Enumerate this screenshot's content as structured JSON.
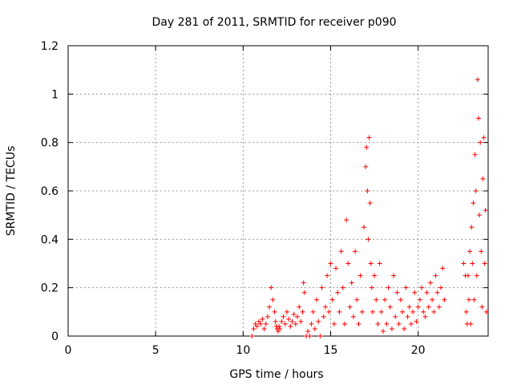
{
  "chart_data": {
    "type": "scatter",
    "title": "Day 281 of 2011, SRMTID for receiver p090",
    "xlabel": "GPS time / hours",
    "ylabel": "SRMTID / TECUs",
    "xlim": [
      0,
      24
    ],
    "ylim": [
      0,
      1.2
    ],
    "x_ticks": [
      0,
      5,
      10,
      15,
      20
    ],
    "x_tick_labels": [
      "0",
      "5",
      "10",
      "15",
      "20"
    ],
    "y_ticks": [
      0,
      0.2,
      0.4,
      0.6,
      0.8,
      1,
      1.2
    ],
    "y_tick_labels": [
      "0",
      "0.2",
      "0.4",
      "0.6",
      "0.8",
      "1",
      "1.2"
    ],
    "grid": true,
    "marker": "+",
    "color": "#ff0000",
    "series": [
      {
        "name": "SRMTID",
        "x": [
          10.5,
          10.6,
          10.7,
          10.8,
          10.9,
          11.0,
          11.1,
          11.2,
          11.3,
          11.4,
          11.5,
          11.6,
          11.7,
          11.8,
          11.85,
          11.9,
          11.95,
          12.0,
          12.05,
          12.1,
          12.2,
          12.3,
          12.4,
          12.5,
          12.6,
          12.7,
          12.8,
          12.9,
          13.0,
          13.1,
          13.2,
          13.3,
          13.4,
          13.45,
          13.5,
          13.6,
          13.7,
          13.8,
          13.9,
          14.0,
          14.1,
          14.2,
          14.3,
          14.4,
          14.5,
          14.6,
          14.7,
          14.8,
          14.9,
          15.0,
          15.1,
          15.2,
          15.3,
          15.4,
          15.5,
          15.6,
          15.7,
          15.8,
          15.9,
          16.0,
          16.1,
          16.2,
          16.3,
          16.4,
          16.5,
          16.6,
          16.7,
          16.8,
          16.9,
          17.0,
          17.05,
          17.1,
          17.15,
          17.2,
          17.25,
          17.3,
          17.35,
          17.4,
          17.5,
          17.6,
          17.7,
          17.8,
          17.9,
          18.0,
          18.1,
          18.2,
          18.3,
          18.4,
          18.5,
          18.6,
          18.7,
          18.8,
          18.9,
          19.0,
          19.1,
          19.2,
          19.3,
          19.4,
          19.5,
          19.6,
          19.7,
          19.8,
          19.9,
          20.0,
          20.1,
          20.2,
          20.3,
          20.4,
          20.5,
          20.6,
          20.7,
          20.8,
          20.9,
          21.0,
          21.1,
          21.2,
          21.3,
          21.4,
          21.5,
          22.6,
          22.7,
          22.75,
          22.8,
          22.85,
          22.9,
          22.95,
          23.0,
          23.05,
          23.1,
          23.15,
          23.2,
          23.25,
          23.3,
          23.35,
          23.4,
          23.45,
          23.5,
          23.55,
          23.6,
          23.65,
          23.7,
          23.75,
          23.8,
          23.85,
          23.9
        ],
        "y": [
          0.0,
          0.03,
          0.05,
          0.04,
          0.06,
          0.05,
          0.07,
          0.03,
          0.05,
          0.08,
          0.12,
          0.2,
          0.15,
          0.1,
          0.06,
          0.04,
          0.03,
          0.02,
          0.04,
          0.03,
          0.06,
          0.08,
          0.05,
          0.1,
          0.07,
          0.04,
          0.06,
          0.09,
          0.05,
          0.08,
          0.12,
          0.06,
          0.1,
          0.22,
          0.18,
          0.0,
          0.02,
          0.0,
          0.05,
          0.1,
          0.03,
          0.15,
          0.06,
          0.0,
          0.2,
          0.08,
          0.12,
          0.25,
          0.1,
          0.3,
          0.15,
          0.05,
          0.28,
          0.18,
          0.1,
          0.35,
          0.2,
          0.05,
          0.48,
          0.3,
          0.12,
          0.22,
          0.08,
          0.35,
          0.15,
          0.05,
          0.25,
          0.1,
          0.45,
          0.7,
          0.78,
          0.6,
          0.4,
          0.82,
          0.55,
          0.3,
          0.2,
          0.1,
          0.25,
          0.15,
          0.05,
          0.3,
          0.1,
          0.02,
          0.15,
          0.05,
          0.2,
          0.12,
          0.03,
          0.25,
          0.08,
          0.18,
          0.05,
          0.15,
          0.1,
          0.03,
          0.2,
          0.08,
          0.12,
          0.05,
          0.1,
          0.18,
          0.06,
          0.12,
          0.15,
          0.2,
          0.1,
          0.08,
          0.18,
          0.12,
          0.22,
          0.15,
          0.1,
          0.25,
          0.18,
          0.12,
          0.2,
          0.28,
          0.15,
          0.3,
          0.25,
          0.1,
          0.05,
          0.25,
          0.15,
          0.35,
          0.05,
          0.45,
          0.3,
          0.55,
          0.15,
          0.75,
          0.6,
          0.25,
          1.06,
          0.9,
          0.5,
          0.8,
          0.35,
          0.12,
          0.65,
          0.82,
          0.3,
          0.52,
          0.1
        ]
      }
    ]
  }
}
